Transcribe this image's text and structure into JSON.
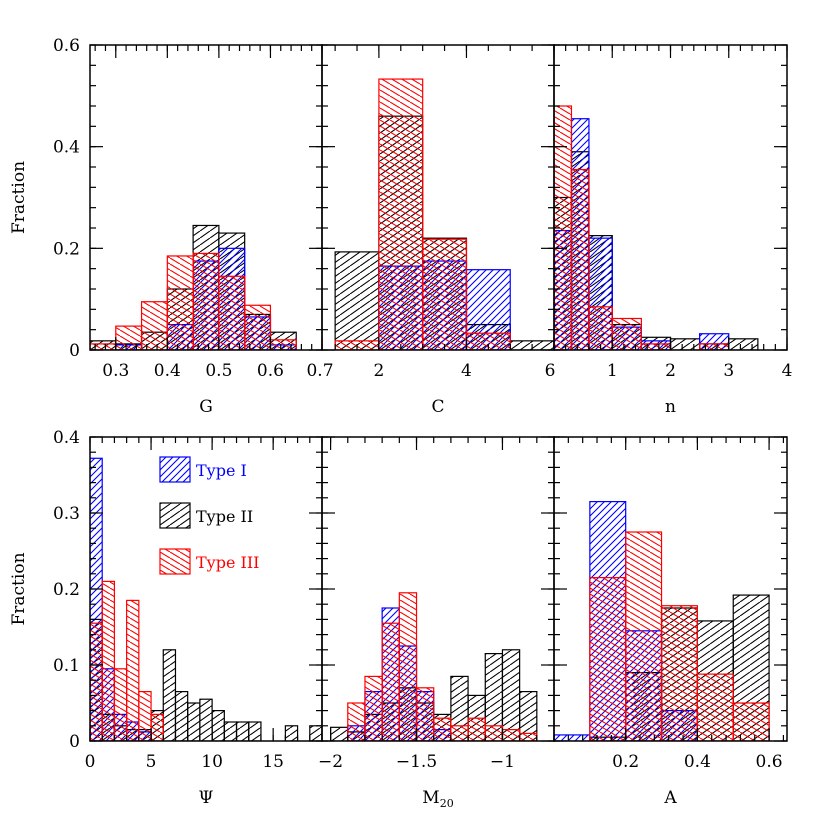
{
  "colors": {
    "Type I": "#0000ff",
    "Type II": "#000000",
    "Type III": "#ff0000"
  },
  "legend": [
    {
      "label": "Type I",
      "color": "#0000ff",
      "hatch": "hatch-blue"
    },
    {
      "label": "Type II",
      "color": "#000000",
      "hatch": "hatch-black"
    },
    {
      "label": "Type III",
      "color": "#ff0000",
      "hatch": "hatch-red"
    }
  ],
  "chart_data": [
    {
      "type": "bar",
      "variant": "histogram",
      "xlabel": "G",
      "ylabel": "Fraction",
      "xlim": [
        0.25,
        0.7
      ],
      "ylim": [
        0,
        0.6
      ],
      "xticks": [
        0.3,
        0.4,
        0.5,
        0.6,
        0.7
      ],
      "yticks": [
        0,
        0.2,
        0.4,
        0.6
      ],
      "xtick_labels": [
        "0.3",
        "0.4",
        "0.5",
        "0.6",
        "0.7"
      ],
      "ytick_labels": [
        "0",
        "0.2",
        "0.4",
        "0.6"
      ],
      "series": [
        {
          "name": "Type II",
          "bins": [
            [
              0.25,
              0.3,
              0.018
            ],
            [
              0.3,
              0.35,
              0.012
            ],
            [
              0.35,
              0.4,
              0.035
            ],
            [
              0.4,
              0.45,
              0.12
            ],
            [
              0.45,
              0.5,
              0.245
            ],
            [
              0.5,
              0.55,
              0.23
            ],
            [
              0.55,
              0.6,
              0.07
            ],
            [
              0.6,
              0.65,
              0.035
            ]
          ]
        },
        {
          "name": "Type I",
          "bins": [
            [
              0.3,
              0.35,
              0.01
            ],
            [
              0.4,
              0.45,
              0.05
            ],
            [
              0.45,
              0.5,
              0.175
            ],
            [
              0.5,
              0.55,
              0.2
            ],
            [
              0.55,
              0.6,
              0.065
            ],
            [
              0.6,
              0.65,
              0.01
            ]
          ]
        },
        {
          "name": "Type III",
          "bins": [
            [
              0.25,
              0.3,
              0.012
            ],
            [
              0.3,
              0.35,
              0.047
            ],
            [
              0.35,
              0.4,
              0.095
            ],
            [
              0.4,
              0.45,
              0.185
            ],
            [
              0.45,
              0.5,
              0.19
            ],
            [
              0.5,
              0.55,
              0.145
            ],
            [
              0.55,
              0.6,
              0.088
            ],
            [
              0.6,
              0.65,
              0.02
            ]
          ]
        }
      ]
    },
    {
      "type": "bar",
      "variant": "histogram",
      "xlabel": "C",
      "xlim": [
        0.7,
        6
      ],
      "ylim": [
        0,
        0.6
      ],
      "xticks": [
        2,
        4,
        6
      ],
      "yticks": [
        0,
        0.2,
        0.4,
        0.6
      ],
      "xtick_labels": [
        "2",
        "4",
        "6"
      ],
      "ytick_labels": [],
      "series": [
        {
          "name": "Type II",
          "bins": [
            [
              1.0,
              2.0,
              0.193
            ],
            [
              2.0,
              3.0,
              0.46
            ],
            [
              3.0,
              4.0,
              0.22
            ],
            [
              4.0,
              5.0,
              0.05
            ],
            [
              5.0,
              6.0,
              0.018
            ]
          ]
        },
        {
          "name": "Type I",
          "bins": [
            [
              2.0,
              3.0,
              0.165
            ],
            [
              3.0,
              4.0,
              0.175
            ],
            [
              4.0,
              5.0,
              0.158
            ]
          ]
        },
        {
          "name": "Type III",
          "bins": [
            [
              1.0,
              2.0,
              0.018
            ],
            [
              2.0,
              3.0,
              0.533
            ],
            [
              3.0,
              4.0,
              0.218
            ],
            [
              4.0,
              5.0,
              0.033
            ]
          ]
        }
      ]
    },
    {
      "type": "bar",
      "variant": "histogram",
      "xlabel": "n",
      "xlim": [
        0,
        4
      ],
      "ylim": [
        0,
        0.6
      ],
      "xticks": [
        1,
        2,
        3,
        4
      ],
      "yticks": [
        0,
        0.2,
        0.4,
        0.6
      ],
      "xtick_labels": [
        "1",
        "2",
        "3",
        "4"
      ],
      "ytick_labels": [],
      "series": [
        {
          "name": "Type II",
          "bins": [
            [
              0.0,
              0.3,
              0.3
            ],
            [
              0.3,
              0.6,
              0.39
            ],
            [
              0.6,
              1.0,
              0.225
            ],
            [
              1.0,
              1.5,
              0.05
            ],
            [
              1.5,
              2.0,
              0.025
            ],
            [
              2.0,
              2.5,
              0.022
            ],
            [
              2.5,
              3.0,
              0.012
            ],
            [
              3.0,
              3.5,
              0.022
            ]
          ]
        },
        {
          "name": "Type I",
          "bins": [
            [
              0.0,
              0.3,
              0.235
            ],
            [
              0.3,
              0.6,
              0.455
            ],
            [
              0.6,
              1.0,
              0.22
            ],
            [
              1.0,
              1.5,
              0.045
            ],
            [
              1.5,
              2.0,
              0.018
            ],
            [
              2.5,
              3.0,
              0.032
            ]
          ]
        },
        {
          "name": "Type III",
          "bins": [
            [
              0.0,
              0.3,
              0.48
            ],
            [
              0.3,
              0.6,
              0.355
            ],
            [
              0.6,
              1.0,
              0.085
            ],
            [
              1.0,
              1.5,
              0.062
            ],
            [
              1.5,
              2.0,
              0.012
            ],
            [
              2.5,
              3.0,
              0.012
            ]
          ]
        }
      ]
    },
    {
      "type": "bar",
      "variant": "histogram",
      "xlabel": "Ψ",
      "ylabel": "Fraction",
      "xlim": [
        0,
        19
      ],
      "ylim": [
        0,
        0.4
      ],
      "xticks": [
        0,
        5,
        10,
        15
      ],
      "yticks": [
        0,
        0.1,
        0.2,
        0.3,
        0.4
      ],
      "xtick_labels": [
        "0",
        "5",
        "10",
        "15"
      ],
      "ytick_labels": [
        "0",
        "0.1",
        "0.2",
        "0.3",
        "0.4"
      ],
      "series": [
        {
          "name": "Type II",
          "bins": [
            [
              0,
              1,
              0.16
            ],
            [
              1,
              2,
              0.035
            ],
            [
              2,
              3,
              0.02
            ],
            [
              3,
              4,
              0.015
            ],
            [
              4,
              5,
              0.015
            ],
            [
              5,
              6,
              0.04
            ],
            [
              6,
              7,
              0.12
            ],
            [
              7,
              8,
              0.065
            ],
            [
              8,
              9,
              0.05
            ],
            [
              9,
              10,
              0.055
            ],
            [
              10,
              11,
              0.04
            ],
            [
              11,
              12,
              0.025
            ],
            [
              12,
              13,
              0.025
            ],
            [
              13,
              14,
              0.025
            ],
            [
              16,
              17,
              0.02
            ],
            [
              18,
              19,
              0.02
            ]
          ]
        },
        {
          "name": "Type I",
          "bins": [
            [
              0,
              1,
              0.372
            ],
            [
              1,
              2,
              0.095
            ],
            [
              2,
              3,
              0.035
            ],
            [
              3,
              4,
              0.025
            ],
            [
              4,
              5,
              0.012
            ]
          ]
        },
        {
          "name": "Type III",
          "bins": [
            [
              0,
              1,
              0.155
            ],
            [
              1,
              2,
              0.21
            ],
            [
              2,
              3,
              0.095
            ],
            [
              3,
              4,
              0.185
            ],
            [
              4,
              5,
              0.065
            ],
            [
              5,
              6,
              0.035
            ]
          ]
        }
      ]
    },
    {
      "type": "bar",
      "variant": "histogram",
      "xlabel": "M20",
      "xlim": [
        -2.05,
        -0.7
      ],
      "ylim": [
        0,
        0.4
      ],
      "xticks": [
        -2,
        -1.5,
        -1
      ],
      "yticks": [
        0,
        0.1,
        0.2,
        0.3,
        0.4
      ],
      "xtick_labels": [
        "−2",
        "−1.5",
        "−1"
      ],
      "ytick_labels": [],
      "series": [
        {
          "name": "Type II",
          "bins": [
            [
              -2.0,
              -1.9,
              0.018
            ],
            [
              -1.9,
              -1.8,
              0.012
            ],
            [
              -1.8,
              -1.7,
              0.035
            ],
            [
              -1.7,
              -1.6,
              0.05
            ],
            [
              -1.6,
              -1.5,
              0.07
            ],
            [
              -1.5,
              -1.4,
              0.05
            ],
            [
              -1.4,
              -1.3,
              0.035
            ],
            [
              -1.3,
              -1.2,
              0.085
            ],
            [
              -1.2,
              -1.1,
              0.06
            ],
            [
              -1.1,
              -1.0,
              0.115
            ],
            [
              -1.0,
              -0.9,
              0.12
            ],
            [
              -0.9,
              -0.8,
              0.065
            ]
          ]
        },
        {
          "name": "Type I",
          "bins": [
            [
              -1.9,
              -1.8,
              0.02
            ],
            [
              -1.8,
              -1.7,
              0.065
            ],
            [
              -1.7,
              -1.6,
              0.175
            ],
            [
              -1.6,
              -1.5,
              0.125
            ],
            [
              -1.5,
              -1.4,
              0.065
            ],
            [
              -1.4,
              -1.3,
              0.015
            ]
          ]
        },
        {
          "name": "Type III",
          "bins": [
            [
              -1.9,
              -1.8,
              0.05
            ],
            [
              -1.8,
              -1.7,
              0.085
            ],
            [
              -1.7,
              -1.6,
              0.155
            ],
            [
              -1.6,
              -1.5,
              0.195
            ],
            [
              -1.5,
              -1.4,
              0.07
            ],
            [
              -1.4,
              -1.3,
              0.03
            ],
            [
              -1.3,
              -1.2,
              0.02
            ],
            [
              -1.2,
              -1.1,
              0.03
            ],
            [
              -1.1,
              -1.0,
              0.02
            ],
            [
              -1.0,
              -0.9,
              0.015
            ],
            [
              -0.9,
              -0.8,
              0.01
            ]
          ]
        }
      ]
    },
    {
      "type": "bar",
      "variant": "histogram",
      "xlabel": "A",
      "xlim": [
        0,
        0.65
      ],
      "ylim": [
        0,
        0.4
      ],
      "xticks": [
        0.2,
        0.4,
        0.6
      ],
      "yticks": [
        0,
        0.1,
        0.2,
        0.3,
        0.4
      ],
      "xtick_labels": [
        "0.2",
        "0.4",
        "0.6"
      ],
      "ytick_labels": [],
      "series": [
        {
          "name": "Type II",
          "bins": [
            [
              0.1,
              0.2,
              0.005
            ],
            [
              0.2,
              0.3,
              0.09
            ],
            [
              0.3,
              0.4,
              0.175
            ],
            [
              0.4,
              0.5,
              0.158
            ],
            [
              0.5,
              0.6,
              0.192
            ]
          ]
        },
        {
          "name": "Type I",
          "bins": [
            [
              0.0,
              0.1,
              0.008
            ],
            [
              0.1,
              0.2,
              0.315
            ],
            [
              0.2,
              0.3,
              0.145
            ],
            [
              0.3,
              0.4,
              0.04
            ]
          ]
        },
        {
          "name": "Type III",
          "bins": [
            [
              0.1,
              0.2,
              0.215
            ],
            [
              0.2,
              0.3,
              0.275
            ],
            [
              0.3,
              0.4,
              0.178
            ],
            [
              0.4,
              0.5,
              0.088
            ],
            [
              0.5,
              0.6,
              0.05
            ]
          ]
        }
      ]
    }
  ]
}
